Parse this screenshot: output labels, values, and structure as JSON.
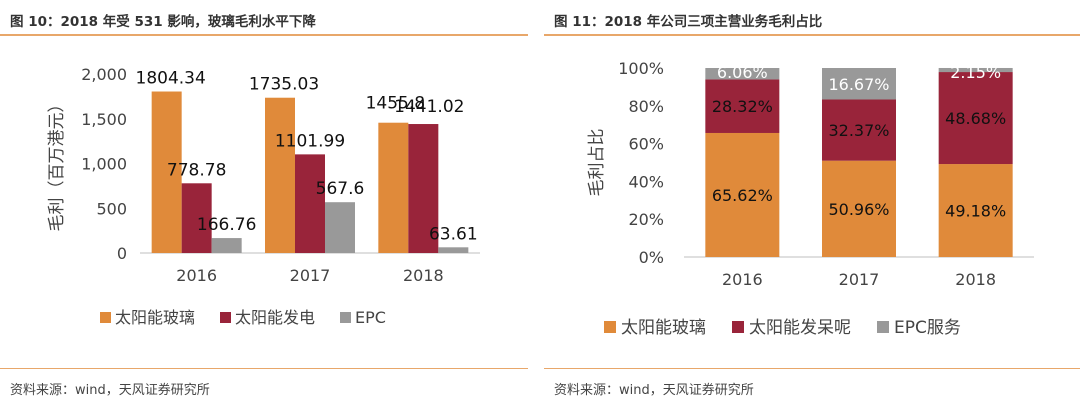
{
  "figures": [
    {
      "title": "图 10：2018 年受 531 影响，玻璃毛利水平下降",
      "source": "资料来源：wind，天风证券研究所"
    },
    {
      "title": "图 11：2018 年公司三项主营业务毛利占比",
      "source": "资料来源：wind，天风证券研究所"
    }
  ],
  "chart_data": [
    {
      "type": "bar",
      "title": "",
      "xlabel": "",
      "ylabel": "毛利（百万港元）",
      "ylim": [
        0,
        2000
      ],
      "yticks": [
        0,
        500,
        1000,
        1500,
        2000
      ],
      "ytick_labels": [
        "0",
        "500",
        "1,000",
        "1,500",
        "2,000"
      ],
      "categories": [
        "2016",
        "2017",
        "2018"
      ],
      "series": [
        {
          "name": "太阳能玻璃",
          "color": "#e08a3a",
          "values": [
            1804.34,
            1735.03,
            1455.8
          ],
          "labels": [
            "1804.34",
            "1735.03",
            "1455.8"
          ]
        },
        {
          "name": "太阳能发电",
          "color": "#99243a",
          "values": [
            778.78,
            1101.99,
            1441.02
          ],
          "labels": [
            "778.78",
            "1101.99",
            "1441.02"
          ]
        },
        {
          "name": "EPC",
          "color": "#999999",
          "values": [
            166.76,
            567.6,
            63.61
          ],
          "labels": [
            "166.76",
            "567.6",
            "63.61"
          ]
        }
      ],
      "legend_position": "bottom"
    },
    {
      "type": "stacked-bar",
      "title": "",
      "xlabel": "",
      "ylabel": "毛利占比",
      "ylim": [
        0,
        100
      ],
      "yticks": [
        0,
        20,
        40,
        60,
        80,
        100
      ],
      "ytick_labels": [
        "0%",
        "20%",
        "40%",
        "60%",
        "80%",
        "100%"
      ],
      "categories": [
        "2016",
        "2017",
        "2018"
      ],
      "series": [
        {
          "name": "太阳能玻璃",
          "color": "#e08a3a",
          "values": [
            65.62,
            50.96,
            49.18
          ],
          "labels": [
            "65.62%",
            "50.96%",
            "49.18%"
          ]
        },
        {
          "name": "太阳能发呆呢",
          "color": "#99243a",
          "values": [
            28.32,
            32.37,
            48.68
          ],
          "labels": [
            "28.32%",
            "32.37%",
            "48.68%"
          ]
        },
        {
          "name": "EPC服务",
          "color": "#999999",
          "values": [
            6.06,
            16.67,
            2.15
          ],
          "labels": [
            "6.06%",
            "16.67%",
            "2.15%"
          ]
        }
      ],
      "legend_position": "bottom"
    }
  ]
}
